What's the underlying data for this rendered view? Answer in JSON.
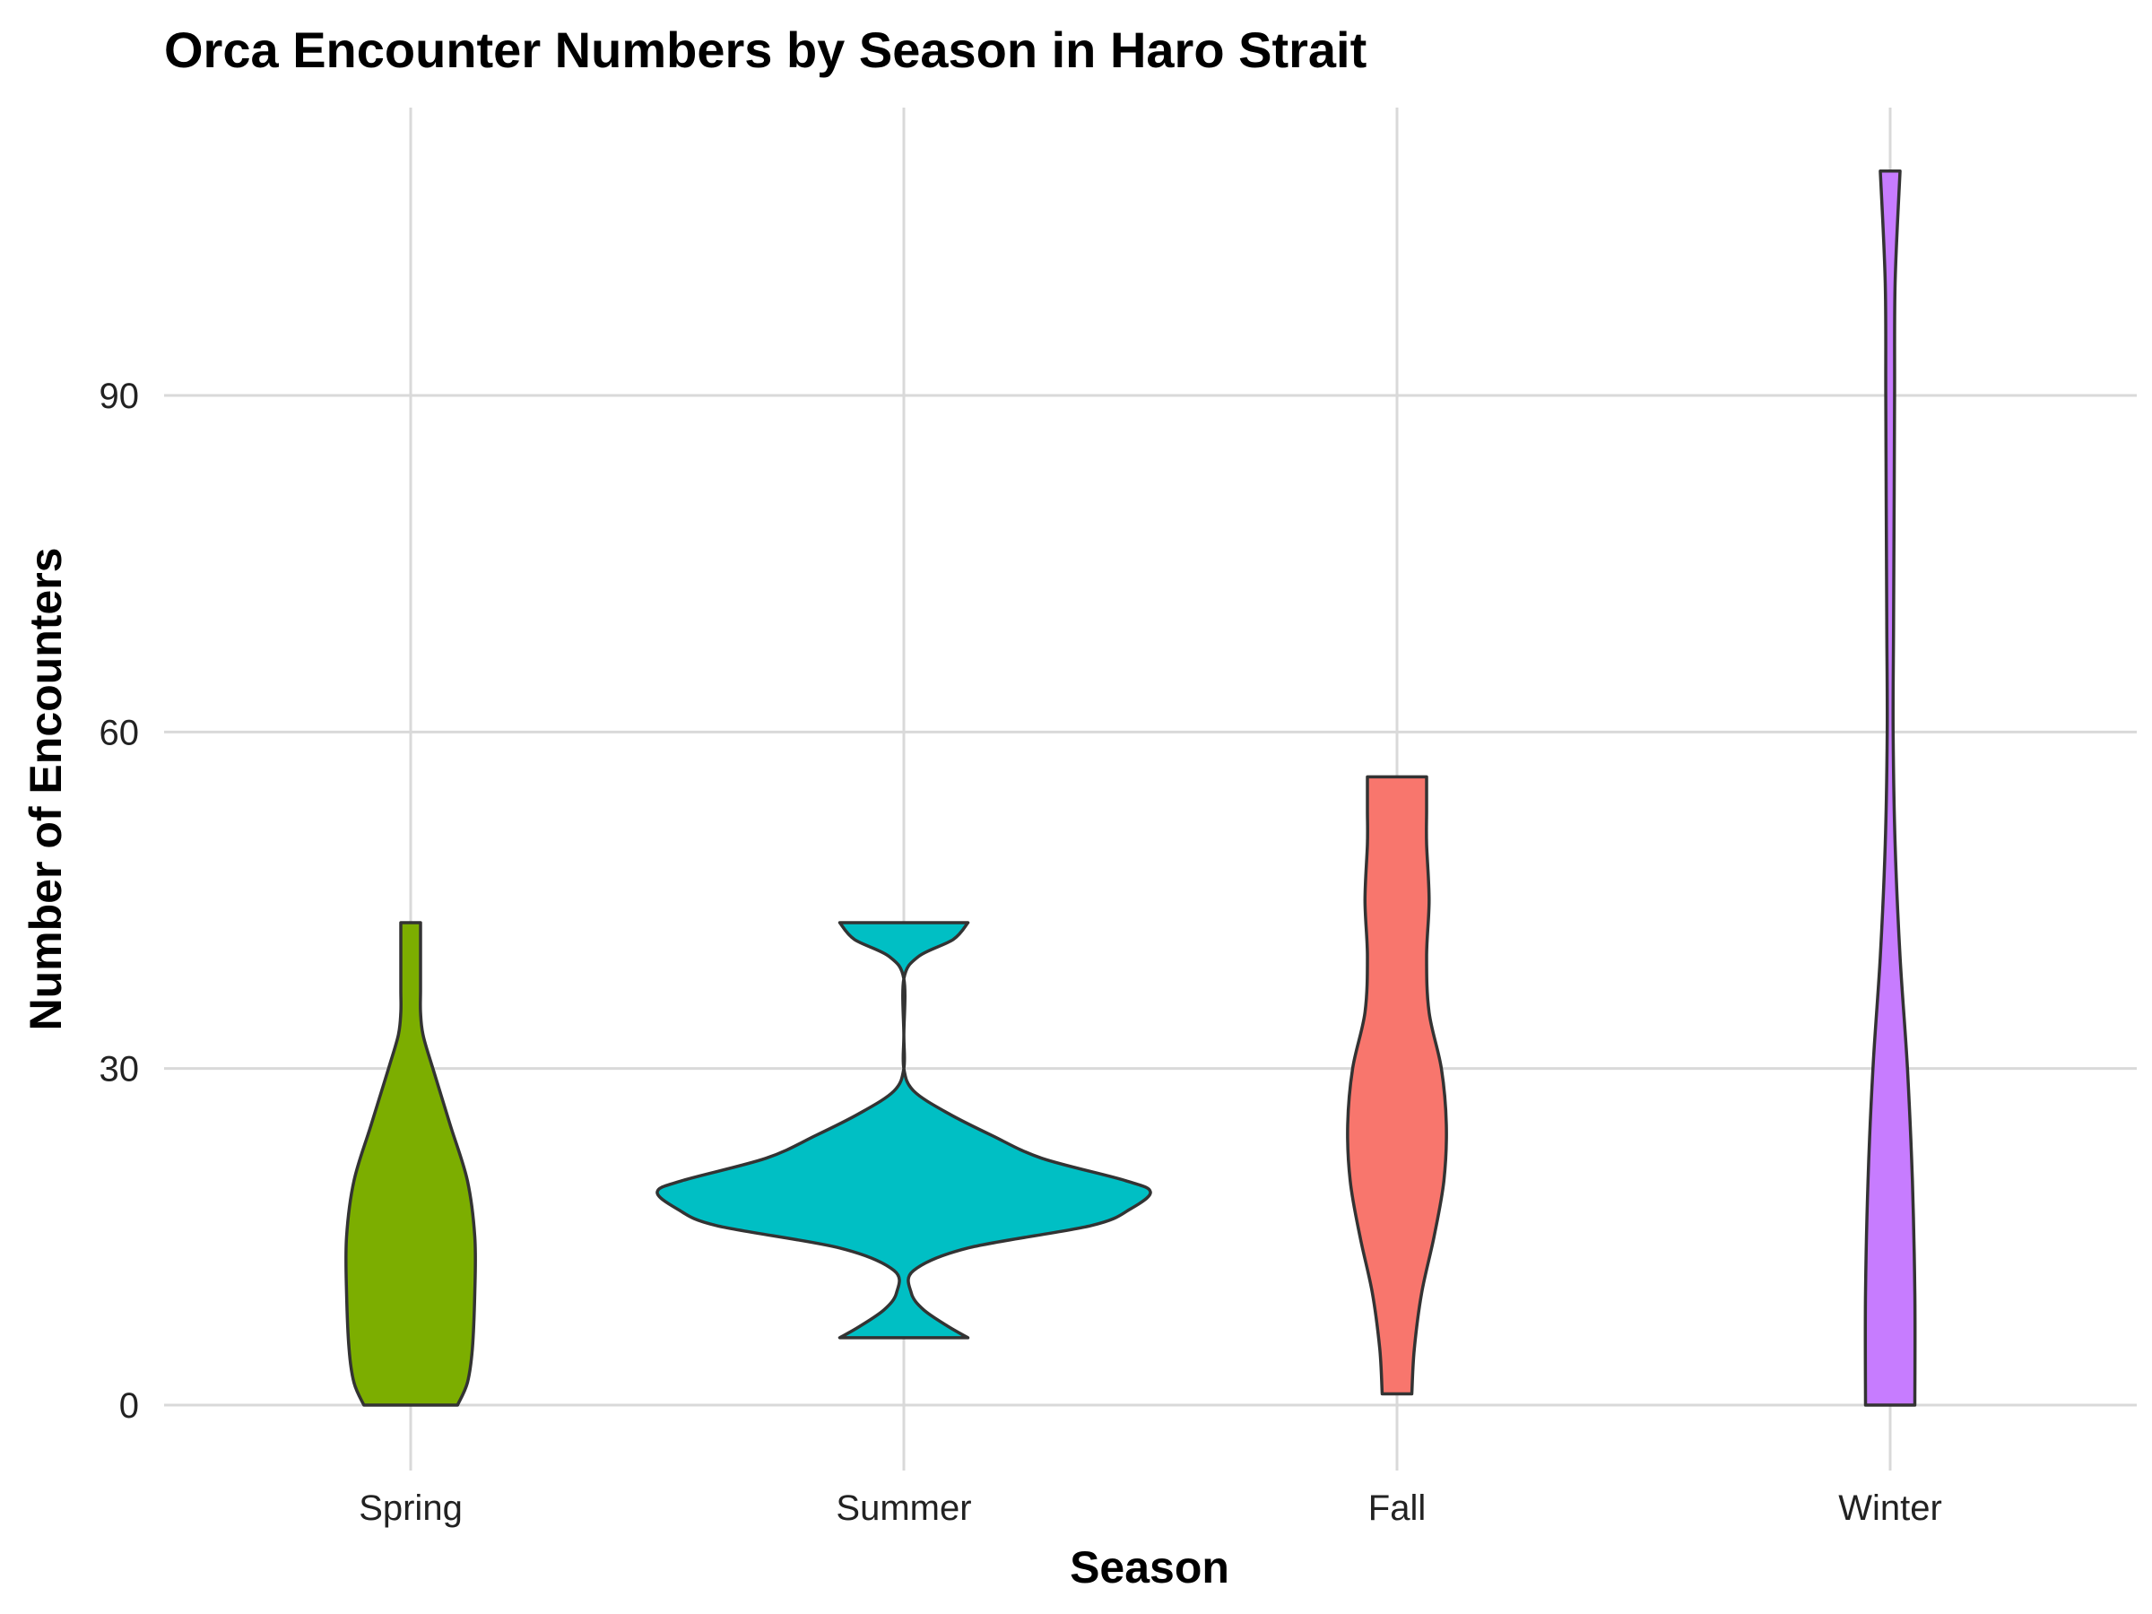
{
  "chart_data": {
    "type": "violin",
    "title": "Orca Encounter Numbers by Season in Haro Strait",
    "xlabel": "Season",
    "ylabel": "Number of Encounters",
    "ylim": [
      -6,
      116
    ],
    "yticks": [
      0,
      30,
      60,
      90
    ],
    "grid": true,
    "legend": "none",
    "categories": [
      "Spring",
      "Summer",
      "Fall",
      "Winter"
    ],
    "series": [
      {
        "category": "Spring",
        "color": "#7CAE00",
        "min": 0,
        "max": 43,
        "profile": [
          [
            0,
            0.095
          ],
          [
            2,
            0.115
          ],
          [
            5,
            0.125
          ],
          [
            10,
            0.13
          ],
          [
            15,
            0.13
          ],
          [
            20,
            0.115
          ],
          [
            25,
            0.08
          ],
          [
            30,
            0.045
          ],
          [
            33,
            0.025
          ],
          [
            35,
            0.02
          ],
          [
            37,
            0.02
          ],
          [
            40,
            0.02
          ],
          [
            43,
            0.02
          ]
        ]
      },
      {
        "category": "Summer",
        "color": "#00BFC4",
        "min": 6,
        "max": 43,
        "profile": [
          [
            6,
            0.13
          ],
          [
            7,
            0.09
          ],
          [
            8.5,
            0.04
          ],
          [
            10,
            0.015
          ],
          [
            12,
            0.02
          ],
          [
            14,
            0.13
          ],
          [
            16,
            0.38
          ],
          [
            17.5,
            0.46
          ],
          [
            19,
            0.5
          ],
          [
            20,
            0.45
          ],
          [
            22,
            0.28
          ],
          [
            24,
            0.18
          ],
          [
            26,
            0.09
          ],
          [
            28,
            0.02
          ],
          [
            30,
            0.0
          ],
          [
            33,
            0.0
          ],
          [
            38,
            0.0
          ],
          [
            40,
            0.03
          ],
          [
            41.5,
            0.1
          ],
          [
            43,
            0.13
          ]
        ]
      },
      {
        "category": "Fall",
        "color": "#F8766D",
        "min": 1,
        "max": 56,
        "profile": [
          [
            1,
            0.03
          ],
          [
            5,
            0.035
          ],
          [
            10,
            0.05
          ],
          [
            15,
            0.075
          ],
          [
            20,
            0.095
          ],
          [
            25,
            0.1
          ],
          [
            30,
            0.09
          ],
          [
            35,
            0.065
          ],
          [
            40,
            0.06
          ],
          [
            45,
            0.065
          ],
          [
            50,
            0.06
          ],
          [
            53,
            0.06
          ],
          [
            56,
            0.06
          ]
        ]
      },
      {
        "category": "Winter",
        "color": "#C77CFF",
        "min": 0,
        "max": 110,
        "profile": [
          [
            0,
            0.05
          ],
          [
            10,
            0.05
          ],
          [
            20,
            0.045
          ],
          [
            30,
            0.035
          ],
          [
            40,
            0.02
          ],
          [
            50,
            0.01
          ],
          [
            60,
            0.006
          ],
          [
            70,
            0.007
          ],
          [
            80,
            0.008
          ],
          [
            90,
            0.009
          ],
          [
            100,
            0.01
          ],
          [
            110,
            0.02
          ]
        ]
      }
    ]
  }
}
